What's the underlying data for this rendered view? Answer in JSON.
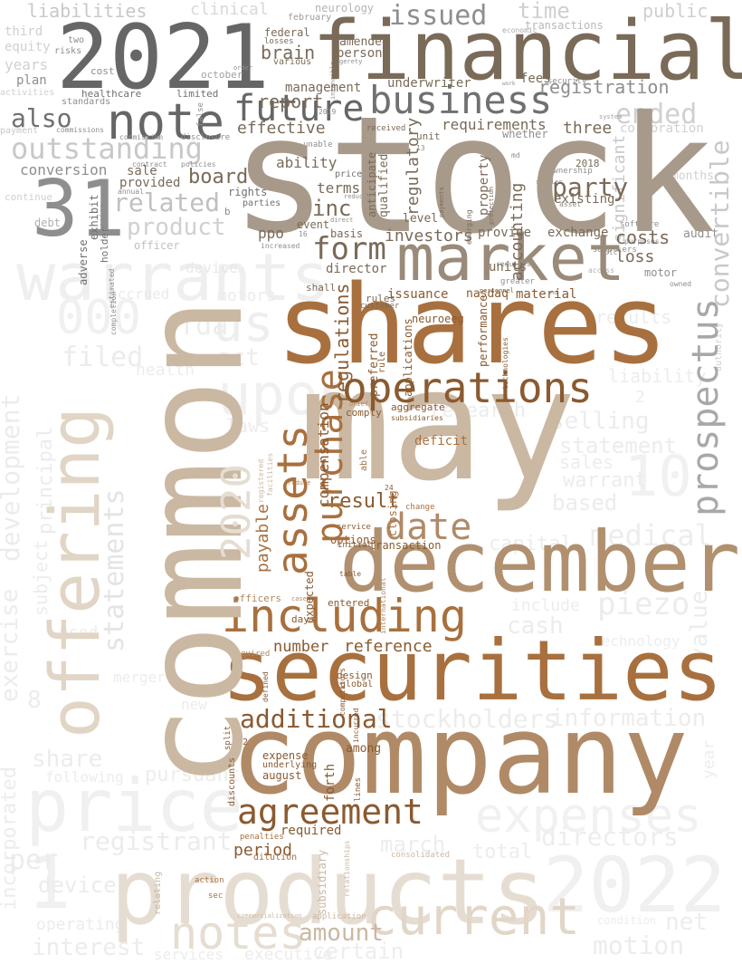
{
  "words": {
    "stock": "stock",
    "common": "common",
    "company": "company",
    "shares": "shares",
    "may": "may",
    "securities": "securities",
    "december": "december",
    "market": "market",
    "financial": "financial",
    "y2021": "2021",
    "products": "products",
    "offering": "offering",
    "warrants": "warrants",
    "price": "price",
    "note": "note",
    "business": "business",
    "including": "including",
    "operations": "operations",
    "agreement": "agreement",
    "current": "current",
    "notes": "notes",
    "prospectus": "prospectus",
    "n31": "31",
    "assets": "assets",
    "date": "date",
    "purchase": "purchase",
    "additional": "additional",
    "future": "future",
    "outstanding": "outstanding",
    "related": "related",
    "product": "product",
    "also": "also",
    "issued": "issued",
    "form": "form",
    "board": "board",
    "party": "party",
    "y2022": "2022",
    "expenses": "expenses",
    "upon": "upon",
    "development": "development",
    "exercise": "exercise",
    "stockholders": "stockholders",
    "medical": "medical",
    "information": "information",
    "statements": "statements",
    "y2020": "2020",
    "amount": "amount",
    "result": "result",
    "period": "period",
    "reference": "reference",
    "number": "number",
    "registration": "registration",
    "convertible": "convertible",
    "report": "report",
    "effective": "effective",
    "brain": "brain",
    "management": "management",
    "inc": "inc",
    "ability": "ability",
    "terms": "terms",
    "ppo": "ppo",
    "investors": "investors",
    "requirements": "requirements",
    "three": "three",
    "loss": "loss",
    "costs": "costs",
    "exchange": "exchange",
    "units": "units",
    "issuance": "issuance",
    "material": "material",
    "director": "director",
    "conversion": "conversion",
    "sale": "sale",
    "provided": "provided",
    "rights": "rights",
    "liabilities": "liabilities",
    "regulations": "regulations",
    "compensation": "compensation",
    "accounting": "accounting",
    "regulatory": "regulatory",
    "qualified": "qualified",
    "property": "property",
    "preferred": "preferred",
    "aggregate": "aggregate",
    "comply": "comply",
    "payable": "payable",
    "expected": "expected",
    "options": "options",
    "transaction": "transaction",
    "among": "among",
    "initial": "initial",
    "service": "service",
    "forth": "forth",
    "expense": "expense",
    "underlying": "underlying",
    "august": "august",
    "required": "required",
    "subsidiary": "subsidiary",
    "design": "design",
    "global": "global",
    "days": "days",
    "entered": "entered",
    "neuroeeg": "neuroeeg",
    "performance": "performance",
    "applications": "applications",
    "nasdaq": "nasdaq",
    "fees": "fees",
    "underwriter": "underwriter",
    "person": "person",
    "amended": "amended",
    "federal": "federal",
    "losses": "losses",
    "various": "various",
    "unit": "unit",
    "received": "received",
    "anticipate": "anticipate",
    "y2018": "2018",
    "existing": "existing",
    "provide": "provide",
    "level": "level",
    "event": "event",
    "basis": "basis",
    "shall": "shall",
    "rules": "rules",
    "customer": "customer",
    "rule": "rule",
    "deficit": "deficit",
    "subsidiaries": "subsidiaries",
    "closing": "closing",
    "able": "able",
    "dilution": "dilution",
    "penalties": "penalties",
    "action": "action",
    "sec": "sec",
    "relating": "relating",
    "officers": "officers",
    "acquired": "acquired",
    "defined": "defined",
    "competitors": "competitors",
    "incurred": "incurred",
    "lines": "lines",
    "split": "split",
    "discounts": "discounts",
    "n12": "12",
    "n24": "24",
    "table": "table",
    "change": "change",
    "international": "international",
    "healthcare": "healthcare",
    "limited": "limited",
    "standards": "standards",
    "plan": "plan",
    "years": "years",
    "cost": "cost",
    "two": "two",
    "risks": "risks",
    "equity": "equity",
    "third": "third",
    "clinical": "clinical",
    "neurology": "neurology",
    "february": "february",
    "economic": "economic",
    "transactions": "transactions",
    "time": "time",
    "public": "public",
    "october": "october",
    "significant": "significant",
    "ended": "ended",
    "corporation": "corporation",
    "months": "months",
    "software": "software",
    "audit": "audit",
    "motor": "motor",
    "asset": "asset",
    "suppliers": "suppliers",
    "ownership": "ownership",
    "security": "security",
    "whether": "whether",
    "adverse": "adverse",
    "exhibit": "exhibit",
    "holder": "holder",
    "russian": "russian",
    "debt": "debt",
    "continue": "continue",
    "annual": "annual",
    "contract": "contract",
    "policies": "policies",
    "commission": "commission",
    "disclosure": "disclosure",
    "false": "false",
    "unable": "unable",
    "prices": "prices",
    "reduced": "reduced",
    "parties": "parties",
    "officer": "officer",
    "device": "device",
    "increased": "increased",
    "direct": "direct",
    "payment": "payment",
    "activities": "activities",
    "piezo": "piezo",
    "cash": "cash",
    "value": "value",
    "per": "per",
    "devices": "devices",
    "total": "total",
    "directors": "directors",
    "march": "march",
    "motion": "motion",
    "net": "net",
    "interest": "interest",
    "executive": "executive",
    "certain": "certain",
    "services": "services",
    "registrant": "registrant",
    "sales": "sales",
    "selling": "selling",
    "statement": "statement",
    "warrant": "warrant",
    "based": "based",
    "research": "research",
    "fda": "fda",
    "act": "act",
    "us": "us",
    "filed": "filed",
    "principal": "principal",
    "incorporated": "incorporated",
    "subject": "subject",
    "share": "share",
    "pursuant": "pursuant",
    "following": "following",
    "health": "health",
    "results": "results",
    "liability": "liability",
    "laws": "laws",
    "capital": "capital",
    "include": "include",
    "technology": "technology",
    "operating": "operating",
    "motors": "motors",
    "accrued": "accrued",
    "n000": "000",
    "n10": "10",
    "n1": "1",
    "n8": "8",
    "merger": "merger",
    "new": "new",
    "used": "used",
    "condition": "condition",
    "year": "year",
    "authority": "authority",
    "commercialization": "commercialization",
    "application": "application",
    "relationships": "relationships",
    "consolidated": "consolidated",
    "greater": "greater",
    "requires": "requires",
    "purposes": "purposes",
    "access": "access",
    "owned": "owned",
    "personnel": "personnel",
    "smaller": "smaller",
    "payments": "payments",
    "protection": "protection",
    "technologies": "technologies",
    "emerging": "emerging",
    "intangible": "intangible",
    "gerety": "gerety",
    "order": "order",
    "work": "work",
    "n16": "16",
    "n13": "13",
    "b": "b",
    "reduce": "reduce",
    "registered": "registered",
    "facilities": "facilities",
    "n2019": "2019",
    "commissions": "commissions",
    "system": "system",
    "estimated": "estimated",
    "completion": "completion",
    "nd": "nd",
    "otc": "otc",
    "brief": "brief",
    "case": "case",
    "md": "md",
    "n2": "2"
  },
  "colors": {
    "gray_dark": "#666666",
    "gray_mid": "#8e8e8e",
    "gray_light": "#c8c8c8",
    "taupe": "#a89a8a",
    "brown_mid": "#7a6a58",
    "tan": "#b08a66",
    "tan_light": "#cbb8a2",
    "copper": "#a8703e",
    "copper_dark": "#8a5a30",
    "beige": "#e6ddd2",
    "faint": "#f0f0f0"
  }
}
